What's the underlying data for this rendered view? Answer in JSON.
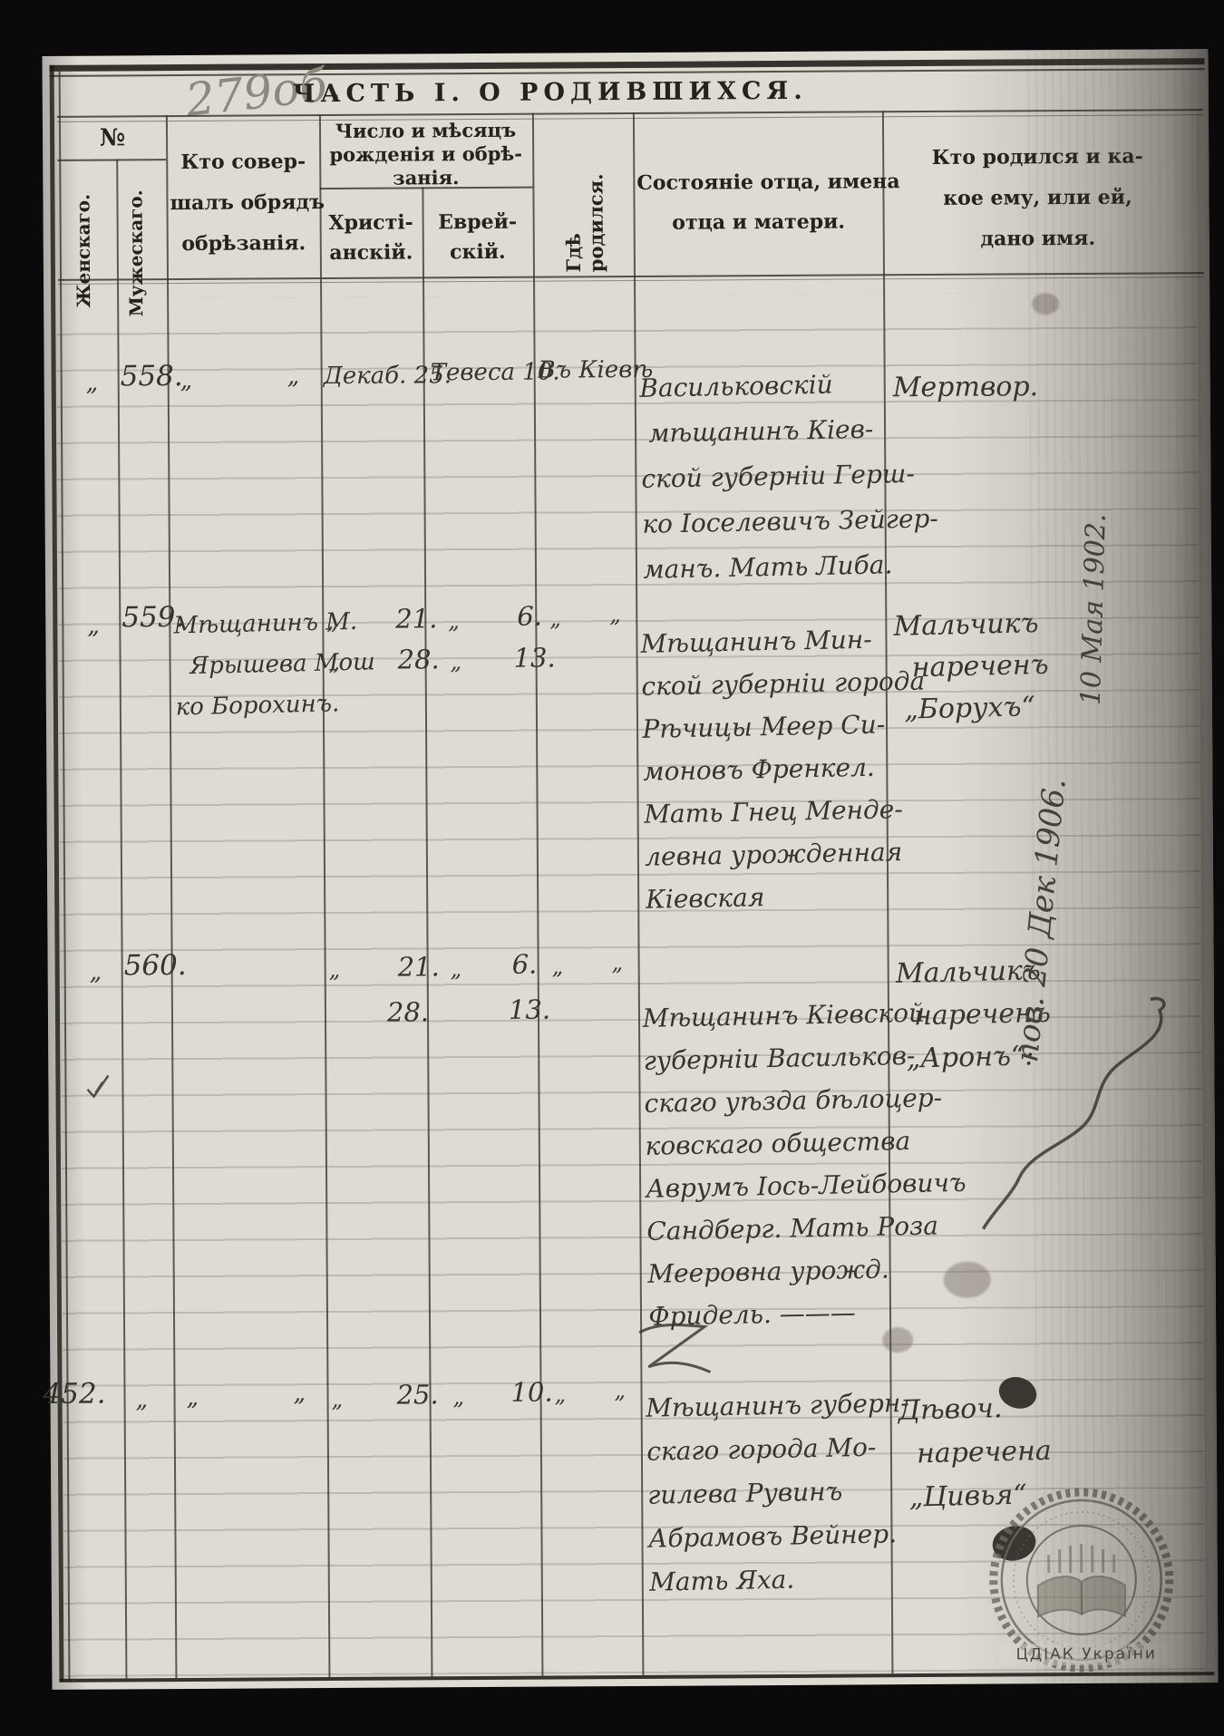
{
  "pencil_page_number": "279об.",
  "title": "ЧАСТЬ I.  О РОДИВШИХСЯ.",
  "headers": {
    "number_sign": "№",
    "female": "Женскаго.",
    "male": "Мужескаго.",
    "officiant_lines": [
      "Кто совер-",
      "шалъ обрядъ",
      "обрѣзанія."
    ],
    "dates_group_lines": [
      "Число и мѣсяцъ",
      "рожденія и обрѣ-",
      "занія."
    ],
    "christian_lines": [
      "Христі-",
      "анскій."
    ],
    "jewish_lines": [
      "Еврей-",
      "скій."
    ],
    "where_born": "Гдѣ родился.",
    "father_lines": [
      "Состояніе отца, имена",
      "отца и матери."
    ],
    "name_lines": [
      "Кто родился и ка-",
      "кое ему, или ей,",
      "дано имя."
    ]
  },
  "records": {
    "558": {
      "female": "„",
      "male": "558.",
      "officiant_ditto_left": "„",
      "officiant_ditto_right": "„",
      "christian": "Декаб. 25.",
      "jewish": "Тевеса 10.",
      "where": "Въ Кіевѣ",
      "father_lines": [
        "Васильковскій",
        " мѣщанинъ Кіев-",
        "ской губерніи Герш-",
        "ко Іоселевичъ Зейгер-",
        "манъ. Мать Либа."
      ],
      "name_lines": [
        "Мертвор."
      ]
    },
    "559": {
      "female": "„",
      "male": "559.",
      "officiant_lines": [
        "Мѣщанинъ М.",
        "  Ярышева Мош",
        "ко Борохинъ."
      ],
      "christian_ditto_1": "„",
      "christian_1": "21.",
      "christian_ditto_2": "„",
      "christian_2": "28.",
      "jewish_ditto_1": "„",
      "jewish_1": "6.",
      "jewish_ditto_2": "„",
      "jewish_2": "13.",
      "where_ditto_left": "„",
      "where_ditto_right": "„",
      "father_lines": [
        "Мѣщанинъ Мин-",
        "ской губерніи города",
        "Рѣчицы Меер Си-",
        "моновъ Френкел.",
        "Мать Гнец Менде-",
        "левна урожденная",
        "Кіевская"
      ],
      "name_lines": [
        "Мальчикъ",
        "  нареченъ",
        " „Борухъ“"
      ]
    },
    "560": {
      "female": "„",
      "male": "560.",
      "christian_ditto_1": "„",
      "christian_1": "21.",
      "christian_2": "28.",
      "jewish_ditto_1": "„",
      "jewish_1": "6.",
      "jewish_2": "13.",
      "where_ditto_left": "„",
      "where_ditto_right": "„",
      "father_lines": [
        "Мѣщанинъ Кіевской",
        "губерніи Васильков-",
        "скаго уѣзда бѣлоцер-",
        "ковскаго общества",
        "Аврумъ Іось-Лейбовичъ",
        "Сандберг. Мать Роза",
        "Мееровна урожд.",
        "Фридель. ———"
      ],
      "name_lines": [
        "Мальчикъ",
        "  нареченъ",
        " „Аронъ“:"
      ]
    },
    "452": {
      "female": "452.",
      "male": "„",
      "officiant_ditto_left": "„",
      "officiant_ditto_right": "„",
      "christian_ditto_1": "„",
      "christian_1": "25.",
      "jewish_ditto_1": "„",
      "jewish_1": "10.",
      "where_ditto_left": "„",
      "where_ditto_right": "„",
      "father_lines": [
        "Мѣщанинъ губерн-",
        "скаго города Мо-",
        "гилева Рувинъ",
        "Абрамовъ Вейнер.",
        "Мать Яха."
      ],
      "name_lines": [
        "Дѣвоч.",
        "  наречена",
        " „Цивья“"
      ]
    }
  },
  "marginalia": {
    "note_top": "10 Мая 1902.",
    "note_bottom": "пов. 20 Дек 1906."
  },
  "stamp": {
    "caption": "ЦДІАК України"
  }
}
